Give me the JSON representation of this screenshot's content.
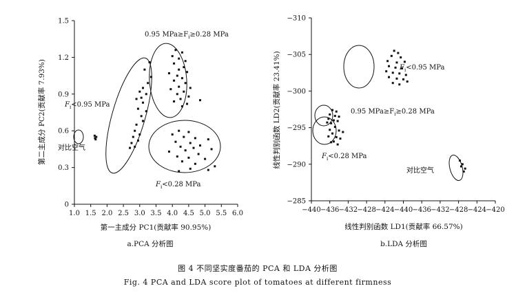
{
  "chart_data": [
    {
      "type": "scatter",
      "title": "",
      "panel_caption": "a.PCA 分析图",
      "xlabel": "第一主成分 PC1(贡献率 90.95%)",
      "ylabel": "第二主成分 PC2(贡献率 7.93%)",
      "xlim": [
        1.0,
        6.0
      ],
      "ylim": [
        0,
        1.5
      ],
      "xticks": [
        "1.0",
        "1.5",
        "2.0",
        "2.5",
        "3.0",
        "3.5",
        "4.0",
        "4.5",
        "5.0",
        "5.5",
        "6.0"
      ],
      "yticks": [
        "0",
        "0.3",
        "0.6",
        "0.9",
        "1.2",
        "1.5"
      ],
      "groups": [
        {
          "name": "对比空气",
          "points": [
            [
              1.62,
              0.56
            ],
            [
              1.65,
              0.53
            ],
            [
              1.67,
              0.55
            ],
            [
              1.63,
              0.54
            ]
          ]
        },
        {
          "name": "Fi<0.95 MPa",
          "points": [
            [
              3.3,
              1.16
            ],
            [
              3.15,
              1.1
            ],
            [
              3.35,
              1.04
            ],
            [
              3.25,
              0.99
            ],
            [
              3.1,
              0.95
            ],
            [
              3.0,
              0.92
            ],
            [
              3.2,
              0.9
            ],
            [
              3.05,
              0.87
            ],
            [
              2.9,
              0.86
            ],
            [
              3.1,
              0.83
            ],
            [
              2.95,
              0.78
            ],
            [
              3.2,
              0.76
            ],
            [
              3.05,
              0.72
            ],
            [
              3.1,
              0.68
            ],
            [
              2.9,
              0.65
            ],
            [
              2.85,
              0.6
            ],
            [
              3.0,
              0.57
            ],
            [
              2.8,
              0.55
            ],
            [
              2.95,
              0.52
            ],
            [
              2.75,
              0.5
            ],
            [
              2.85,
              0.47
            ],
            [
              2.7,
              0.46
            ]
          ]
        },
        {
          "name": "0.95 MPa≥Fi≥0.28 MPa",
          "points": [
            [
              4.1,
              1.26
            ],
            [
              4.3,
              1.24
            ],
            [
              4.0,
              1.21
            ],
            [
              4.2,
              1.19
            ],
            [
              4.4,
              1.17
            ],
            [
              4.05,
              1.15
            ],
            [
              4.35,
              1.12
            ],
            [
              4.2,
              1.1
            ],
            [
              4.45,
              1.08
            ],
            [
              3.9,
              1.07
            ],
            [
              4.15,
              1.05
            ],
            [
              4.3,
              1.03
            ],
            [
              4.05,
              1.01
            ],
            [
              4.4,
              0.99
            ],
            [
              4.2,
              0.96
            ],
            [
              3.95,
              0.94
            ],
            [
              4.35,
              0.92
            ],
            [
              4.15,
              0.9
            ],
            [
              4.5,
              0.88
            ],
            [
              4.25,
              0.86
            ],
            [
              4.05,
              0.84
            ],
            [
              4.45,
              0.82
            ],
            [
              4.3,
              0.8
            ],
            [
              4.85,
              0.85
            ],
            [
              4.55,
              0.95
            ]
          ]
        },
        {
          "name": "Fi<0.28 MPa",
          "points": [
            [
              4.2,
              0.6
            ],
            [
              4.5,
              0.59
            ],
            [
              4.0,
              0.57
            ],
            [
              4.35,
              0.55
            ],
            [
              4.7,
              0.54
            ],
            [
              5.1,
              0.53
            ],
            [
              4.1,
              0.51
            ],
            [
              4.55,
              0.5
            ],
            [
              4.85,
              0.48
            ],
            [
              4.25,
              0.47
            ],
            [
              4.65,
              0.46
            ],
            [
              4.4,
              0.44
            ],
            [
              5.2,
              0.45
            ],
            [
              3.9,
              0.43
            ],
            [
              4.8,
              0.41
            ],
            [
              4.15,
              0.39
            ],
            [
              4.5,
              0.38
            ],
            [
              5.0,
              0.37
            ],
            [
              4.3,
              0.35
            ],
            [
              4.7,
              0.33
            ],
            [
              5.3,
              0.31
            ],
            [
              4.55,
              0.29
            ],
            [
              5.1,
              0.28
            ],
            [
              4.2,
              0.27
            ]
          ]
        }
      ],
      "annotations": {
        "air": "对比空气",
        "low_prefix": "F",
        "low_sub": "i",
        "low_suffix": "<0.95 MPa",
        "mid_prefix": "0.95 MPa≥F",
        "mid_sub": "i",
        "mid_suffix": "≥0.28 MPa",
        "soft_prefix": "F",
        "soft_sub": "i",
        "soft_suffix": "<0.28 MPa"
      }
    },
    {
      "type": "scatter",
      "title": "",
      "panel_caption": "b.LDA 分析图",
      "xlabel": "线性判别函数 LD1(贡献率 66.57%)",
      "ylabel": "线性判别函数 LD2(贡献率 23.41%)",
      "xlim": [
        0,
        14
      ],
      "ylim": [
        -310,
        -285
      ],
      "xticks": [
        "−440",
        "−436",
        "−432",
        "−428",
        "−424",
        "−440",
        "−436",
        "−432",
        "−428",
        "−424",
        "−420"
      ],
      "yticks": [
        "−285",
        "−290",
        "−295",
        "−300",
        "−305",
        "−310"
      ],
      "groups": [
        {
          "name": "Fi<0.95 MPa",
          "points": [
            [
              6.3,
              -289.5
            ],
            [
              6.6,
              -289.8
            ],
            [
              6.1,
              -290.2
            ],
            [
              6.8,
              -290.4
            ],
            [
              5.8,
              -290.9
            ],
            [
              6.5,
              -291.1
            ],
            [
              7.1,
              -291.0
            ],
            [
              5.9,
              -291.6
            ],
            [
              6.4,
              -291.8
            ],
            [
              6.9,
              -291.9
            ],
            [
              5.7,
              -292.3
            ],
            [
              6.2,
              -292.5
            ],
            [
              6.7,
              -292.6
            ],
            [
              7.2,
              -292.8
            ],
            [
              5.9,
              -293.1
            ],
            [
              6.5,
              -293.3
            ],
            [
              7.0,
              -293.4
            ],
            [
              6.2,
              -293.9
            ],
            [
              6.7,
              -294.1
            ],
            [
              7.3,
              -293.7
            ]
          ]
        },
        {
          "name": "0.95 MPa≥Fi≥0.28 MPa",
          "points": [
            [
              1.6,
              -297.6
            ],
            [
              1.9,
              -297.8
            ],
            [
              1.4,
              -298.2
            ],
            [
              1.8,
              -298.4
            ],
            [
              2.1,
              -298.5
            ],
            [
              1.3,
              -298.8
            ],
            [
              1.7,
              -299.0
            ],
            [
              2.0,
              -299.1
            ],
            [
              1.5,
              -299.4
            ],
            [
              1.2,
              -299.3
            ]
          ]
        },
        {
          "name": "Fi<0.28 MPa",
          "points": [
            [
              1.8,
              -299.9
            ],
            [
              1.4,
              -300.3
            ],
            [
              2.1,
              -300.4
            ],
            [
              1.6,
              -300.8
            ],
            [
              2.4,
              -300.6
            ],
            [
              1.3,
              -301.2
            ],
            [
              1.9,
              -301.3
            ],
            [
              2.2,
              -301.5
            ],
            [
              1.7,
              -301.9
            ],
            [
              2.0,
              -302.3
            ],
            [
              1.5,
              -302.0
            ]
          ]
        },
        {
          "name": "对比空气",
          "points": [
            [
              11.3,
              -304.5
            ],
            [
              11.5,
              -305.0
            ],
            [
              11.7,
              -305.6
            ],
            [
              11.4,
              -305.3
            ],
            [
              11.6,
              -306.0
            ]
          ]
        }
      ],
      "annotations": {
        "air": "对比空气",
        "low_prefix": "F",
        "low_sub": "i",
        "low_suffix": "<0.95 MPa",
        "mid_prefix": "0.95 MPa≥F",
        "mid_sub": "i",
        "mid_suffix": "≥0.28 MPa",
        "soft_prefix": "F",
        "soft_sub": "i",
        "soft_suffix": "<0.28 MPa"
      }
    }
  ],
  "figure_caption": {
    "zh": "图 4   不同坚实度番茄的 PCA 和 LDA 分析图",
    "en": "Fig. 4   PCA and LDA score plot of tomatoes at different firmness"
  },
  "colors": {
    "ink": "#111111",
    "background": "#ffffff"
  }
}
